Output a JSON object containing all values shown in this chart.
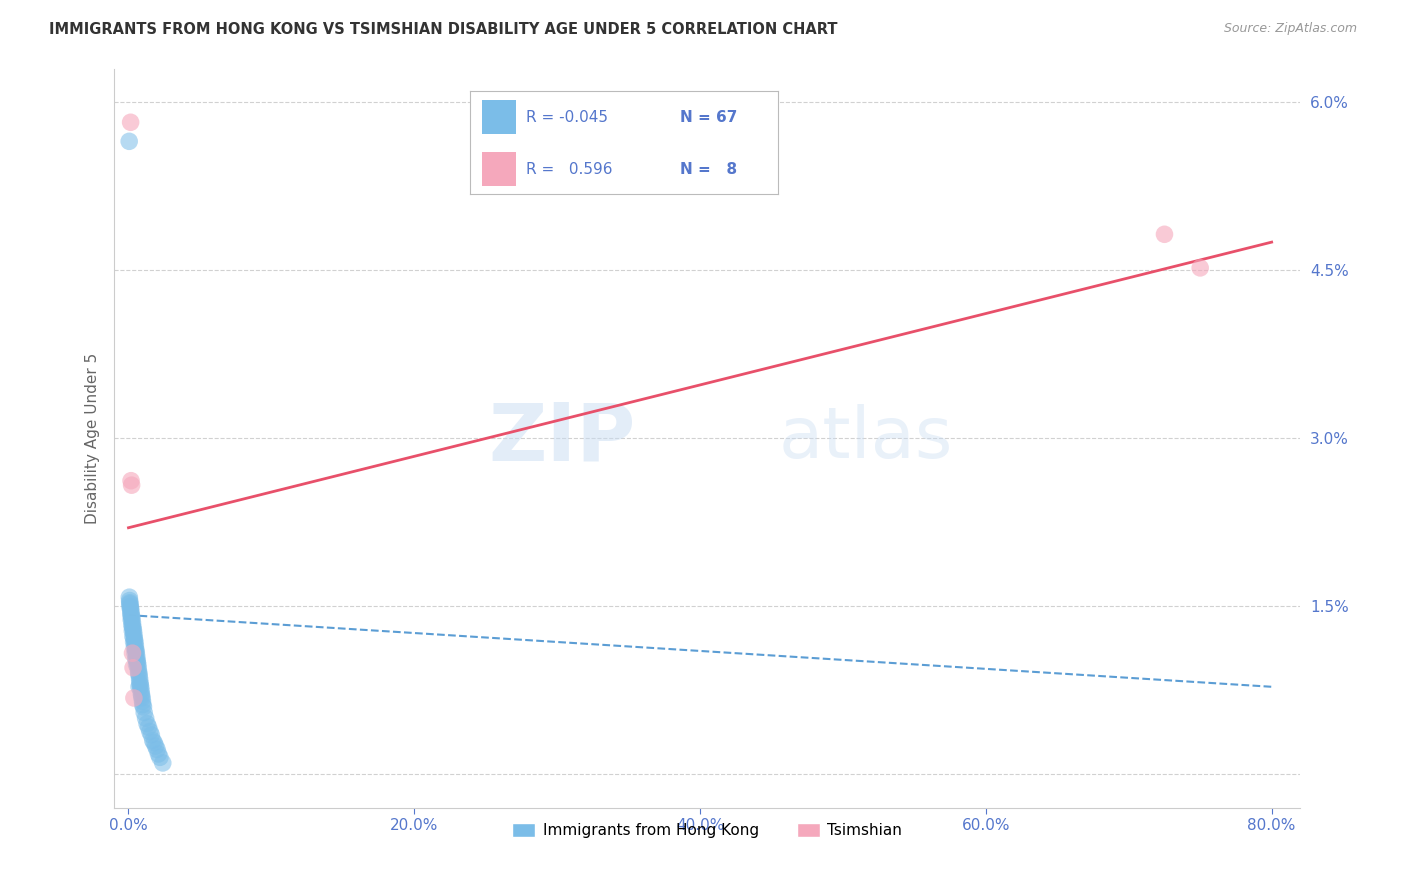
{
  "title": "IMMIGRANTS FROM HONG KONG VS TSIMSHIAN DISABILITY AGE UNDER 5 CORRELATION CHART",
  "source": "Source: ZipAtlas.com",
  "ylabel": "Disability Age Under 5",
  "x_tick_labels": [
    "0.0%",
    "20.0%",
    "40.0%",
    "60.0%",
    "80.0%"
  ],
  "x_tick_values": [
    0.0,
    20.0,
    40.0,
    60.0,
    80.0
  ],
  "y_tick_labels": [
    "6.0%",
    "4.5%",
    "3.0%",
    "1.5%",
    ""
  ],
  "y_tick_values": [
    6.0,
    4.5,
    3.0,
    1.5,
    0.0
  ],
  "xlim": [
    -1.0,
    82.0
  ],
  "ylim": [
    -0.3,
    6.3
  ],
  "blue_color": "#7bbde8",
  "pink_color": "#f5a8bc",
  "blue_line_color": "#5b9dd4",
  "pink_line_color": "#e8506a",
  "legend_R_blue": "-0.045",
  "legend_N_blue": "67",
  "legend_R_pink": "0.596",
  "legend_N_pink": "8",
  "watermark_zip": "ZIP",
  "watermark_atlas": "atlas",
  "legend_label_blue": "Immigrants from Hong Kong",
  "legend_label_pink": "Tsimshian",
  "blue_dots_x": [
    0.05,
    0.08,
    0.1,
    0.12,
    0.15,
    0.18,
    0.2,
    0.22,
    0.25,
    0.28,
    0.3,
    0.32,
    0.35,
    0.38,
    0.4,
    0.42,
    0.45,
    0.48,
    0.5,
    0.52,
    0.55,
    0.58,
    0.6,
    0.62,
    0.65,
    0.68,
    0.7,
    0.72,
    0.75,
    0.78,
    0.8,
    0.82,
    0.85,
    0.88,
    0.9,
    0.92,
    0.95,
    0.98,
    1.0,
    1.05,
    1.1,
    1.2,
    1.3,
    1.4,
    1.5,
    1.6,
    1.7,
    1.8,
    1.9,
    2.0,
    2.1,
    2.2,
    2.4,
    0.06,
    0.09,
    0.13,
    0.16,
    0.19,
    0.23,
    0.27,
    0.31,
    0.36,
    0.41,
    0.46,
    0.51,
    0.56,
    0.74
  ],
  "blue_dots_y": [
    5.65,
    1.55,
    1.52,
    1.5,
    1.48,
    1.45,
    1.42,
    1.4,
    1.38,
    1.35,
    1.32,
    1.3,
    1.28,
    1.25,
    1.22,
    1.2,
    1.18,
    1.15,
    1.12,
    1.1,
    1.08,
    1.05,
    1.02,
    1.0,
    0.98,
    0.95,
    0.92,
    0.9,
    0.88,
    0.85,
    0.82,
    0.8,
    0.78,
    0.75,
    0.72,
    0.7,
    0.68,
    0.65,
    0.62,
    0.6,
    0.55,
    0.5,
    0.45,
    0.42,
    0.38,
    0.35,
    0.3,
    0.28,
    0.25,
    0.22,
    0.18,
    0.15,
    0.1,
    1.58,
    1.53,
    1.48,
    1.43,
    1.38,
    1.33,
    1.28,
    1.23,
    1.18,
    1.13,
    1.08,
    1.03,
    0.98,
    0.78
  ],
  "pink_dots_x": [
    0.18,
    0.22,
    0.28,
    0.32,
    0.15,
    0.38,
    72.5,
    75.0
  ],
  "pink_dots_y": [
    2.62,
    2.58,
    1.08,
    0.95,
    5.82,
    0.68,
    4.82,
    4.52
  ],
  "blue_line_x": [
    0.0,
    80.0
  ],
  "blue_line_y": [
    1.42,
    0.78
  ],
  "pink_line_x": [
    0.0,
    80.0
  ],
  "pink_line_y": [
    2.2,
    4.75
  ],
  "background_color": "#ffffff",
  "grid_color": "#cccccc",
  "tick_color": "#5577cc",
  "axis_color": "#cccccc"
}
